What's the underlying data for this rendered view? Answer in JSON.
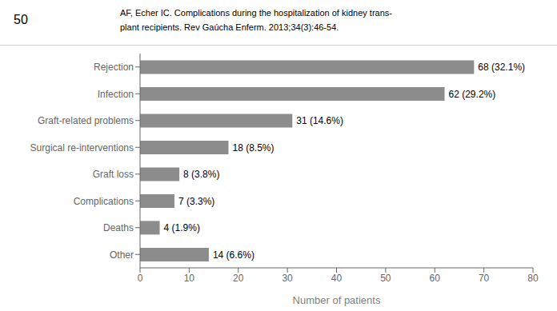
{
  "chart_data": {
    "type": "bar",
    "orientation": "horizontal",
    "categories": [
      "Rejection",
      "Infection",
      "Graft-related problems",
      "Surgical re-interventions",
      "Graft loss",
      "Complications",
      "Deaths",
      "Other"
    ],
    "values": [
      68,
      62,
      31,
      18,
      8,
      7,
      4,
      14
    ],
    "value_labels": [
      "68 (32.1%)",
      "62 (29.2%)",
      "31 (14.6%)",
      "18 (8.5%)",
      "8 (3.8%)",
      "7 (3.3%)",
      "4 (1.9%)",
      "14 (6.6%)"
    ],
    "data_labels": true,
    "color": "#8c8c8c",
    "xlabel": "Number of patients",
    "xlim": [
      0,
      80
    ],
    "xticks": [
      0,
      10,
      20,
      30,
      40,
      50,
      60,
      70,
      80
    ],
    "grid": false,
    "annotations": [
      "50",
      "AF, Echer IC. Complications during the hospitalization of  kidney trans-",
      "plant recipients. Rev Gaúcha Enferm. 2013;34(3):46-54."
    ]
  }
}
